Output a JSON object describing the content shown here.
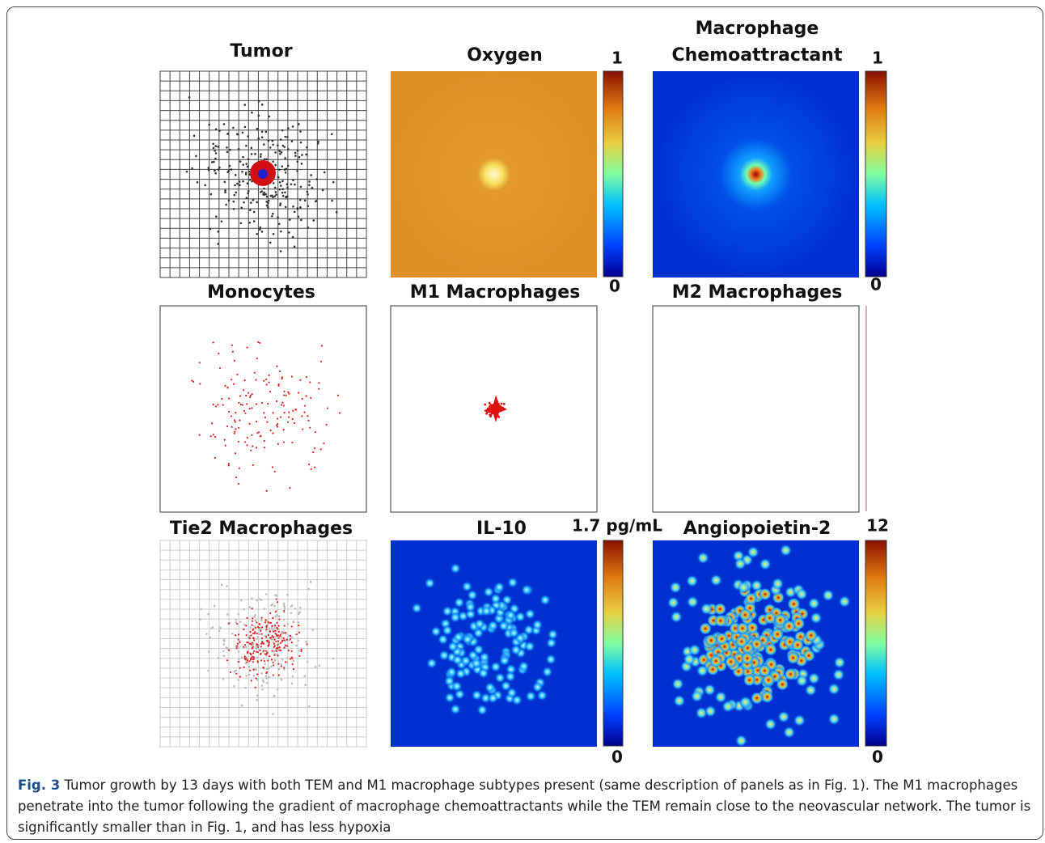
{
  "panels": [
    {
      "title_lines": [
        "Tumor"
      ]
    },
    {
      "title_lines": [
        "Oxygen"
      ]
    },
    {
      "title_lines": [
        "Macrophage",
        "Chemoattractant"
      ]
    },
    {
      "title_lines": [
        "Monocytes"
      ]
    },
    {
      "title_lines": [
        "M1 Macrophages"
      ]
    },
    {
      "title_lines": [
        "M2 Macrophages"
      ]
    },
    {
      "title_lines": [
        "Tie2 Macrophages"
      ]
    },
    {
      "title_lines": [
        "IL-10"
      ]
    },
    {
      "title_lines": [
        "Angiopoietin-2"
      ]
    }
  ],
  "colorbars": [
    {
      "max": "1",
      "min": "0"
    },
    {
      "max": "1",
      "min": "0"
    },
    {
      "max": "1.7 pg/mL",
      "min": "0"
    },
    {
      "max": "12",
      "min": "0"
    }
  ],
  "caption": {
    "label": "Fig. 3",
    "text": "Tumor growth by 13 days with both TEM and M1 macrophage subtypes present (same description of panels as in Fig. 1). The M1 macrophages penetrate into the tumor following the gradient of macrophage chemoattractants while the TEM remain close to the neovascular network. The tumor is significantly smaller than in Fig. 1, and has less hypoxia"
  }
}
